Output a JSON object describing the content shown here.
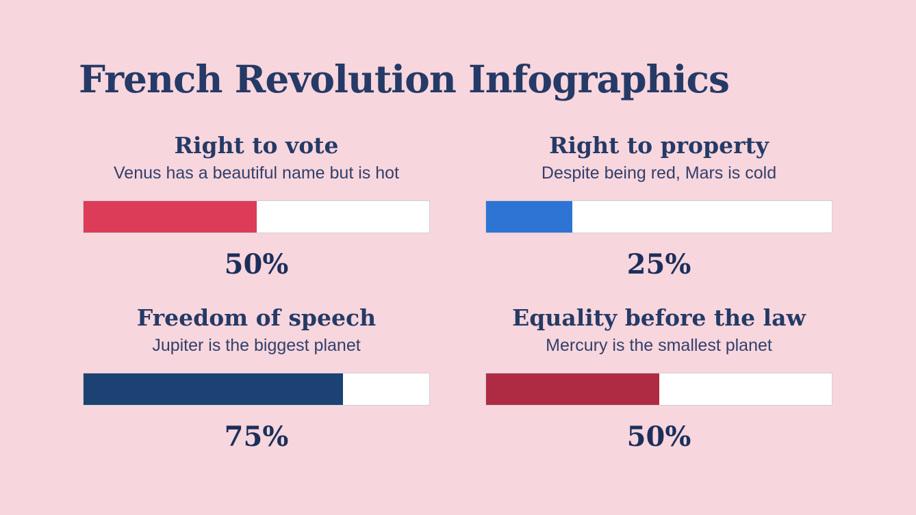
{
  "title": "French Revolution Infographics",
  "colors": {
    "bg": "#F8D6DD",
    "heading": "#253A66",
    "subtitle": "#31406B",
    "percent": "#1C2F5B",
    "track": "#FFFFFF"
  },
  "cards": [
    {
      "title": "Right to vote",
      "subtitle": "Venus has a beautiful name but is hot",
      "percent": 50,
      "percent_label": "50%",
      "fill_color": "#DC3C58"
    },
    {
      "title": "Right to property",
      "subtitle": "Despite being red, Mars is cold",
      "percent": 25,
      "percent_label": "25%",
      "fill_color": "#2E74D4"
    },
    {
      "title": "Freedom of speech",
      "subtitle": "Jupiter is the biggest planet",
      "percent": 75,
      "percent_label": "75%",
      "fill_color": "#1B4273"
    },
    {
      "title": "Equality before the law",
      "subtitle": "Mercury is the smallest planet",
      "percent": 50,
      "percent_label": "50%",
      "fill_color": "#AE2B43"
    }
  ],
  "chart_data": {
    "type": "bar",
    "orientation": "horizontal",
    "title": "French Revolution Infographics",
    "categories": [
      "Right to vote",
      "Right to property",
      "Freedom of speech",
      "Equality before the law"
    ],
    "values": [
      50,
      25,
      75,
      50
    ],
    "value_labels": [
      "50%",
      "25%",
      "75%",
      "50%"
    ],
    "annotations": [
      "Venus has a beautiful name but is hot",
      "Despite being red, Mars is cold",
      "Jupiter is the biggest planet",
      "Mercury is the smallest planet"
    ],
    "bar_colors": [
      "#DC3C58",
      "#2E74D4",
      "#1B4273",
      "#AE2B43"
    ],
    "xlabel": "",
    "ylabel": "",
    "xlim": [
      0,
      100
    ],
    "grid": false,
    "legend": false
  }
}
